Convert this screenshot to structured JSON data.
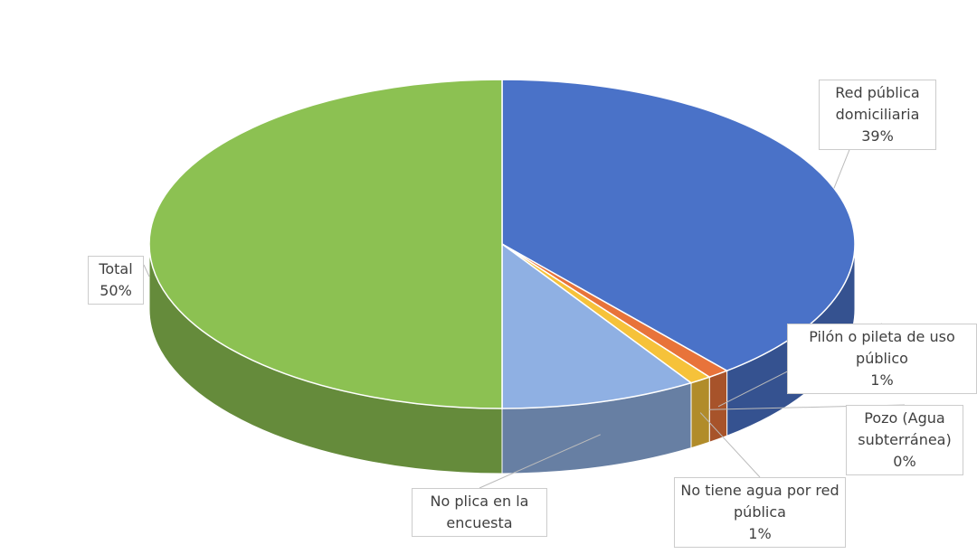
{
  "chart_data": {
    "type": "pie3d",
    "categories": [
      "Red pública domiciliaria",
      "Pilón o pileta de uso público",
      "Pozo (Agua subterránea)",
      "No tiene agua por red pública",
      "No plica en la encuesta",
      "Total"
    ],
    "values": [
      39,
      1,
      0,
      1,
      9,
      50
    ],
    "value_labels": [
      "39%",
      "1%",
      "0%",
      "1%",
      null,
      "50%"
    ],
    "colors": [
      "#4a72c8",
      "#e8733a",
      "#9b6a3f",
      "#f6c23a",
      "#8fb0e3",
      "#8cc152"
    ]
  }
}
